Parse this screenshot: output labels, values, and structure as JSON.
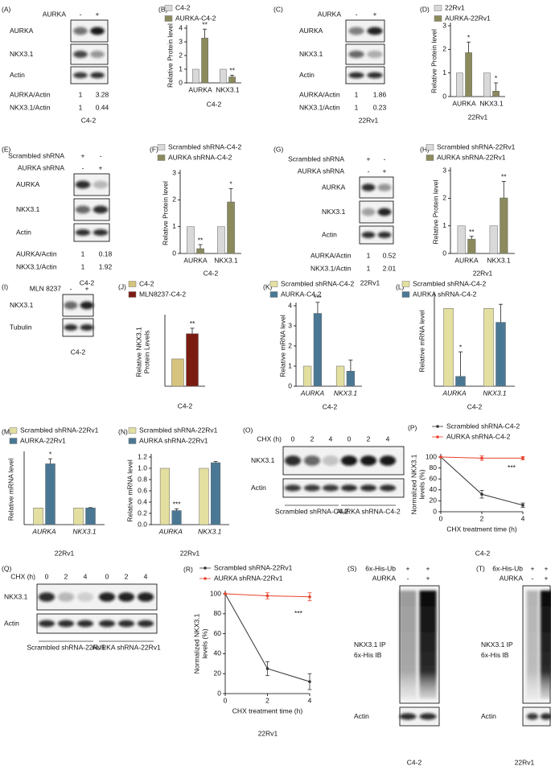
{
  "chart_data": [
    {
      "type": "bar",
      "panel": "(B)",
      "categories": [
        "AURKA",
        "NKX3.1"
      ],
      "series": [
        {
          "name": "C4-2",
          "color": "#d9d9d9",
          "values": [
            1,
            1
          ]
        },
        {
          "name": "AURKA-C4-2",
          "color": "#8a8a5c",
          "values": [
            3.28,
            0.44
          ],
          "errors": [
            0.65,
            0.12
          ],
          "significance": [
            "**",
            "**"
          ]
        }
      ],
      "ylabel": [
        "Relative Protein level"
      ],
      "ylim": [
        0,
        4
      ],
      "yticks": [
        0,
        1,
        2,
        3,
        4
      ],
      "caption": "C4-2",
      "caption_color": "#a03aa8"
    },
    {
      "type": "bar",
      "panel": "(D)",
      "categories": [
        "AURKA",
        "NKX3.1"
      ],
      "series": [
        {
          "name": "22Rv1",
          "color": "#d9d9d9",
          "values": [
            1,
            1
          ]
        },
        {
          "name": "AURKA-22Rv1",
          "color": "#8a8a5c",
          "values": [
            1.86,
            0.23
          ],
          "errors": [
            0.45,
            0.35
          ],
          "significance": [
            "*",
            "*"
          ]
        }
      ],
      "ylabel": [
        "Relative Protein level"
      ],
      "ylim": [
        0,
        3
      ],
      "yticks": [
        0,
        1,
        2,
        3
      ],
      "caption": "22Rv1",
      "caption_color": "#2e9e4a"
    },
    {
      "type": "bar",
      "panel": "(F)",
      "categories": [
        "AURKA",
        "NKX3.1"
      ],
      "series": [
        {
          "name": "Scrambled shRNA-C4-2",
          "color": "#d9d9d9",
          "values": [
            1,
            1
          ]
        },
        {
          "name": "AURKA shRNA-C4-2",
          "color": "#8a8a5c",
          "values": [
            0.18,
            1.92
          ],
          "errors": [
            0.15,
            0.5
          ],
          "significance": [
            "**",
            "*"
          ]
        }
      ],
      "ylabel": [
        "Relative Protein level"
      ],
      "ylim": [
        0,
        3
      ],
      "yticks": [
        0,
        1,
        2,
        3
      ],
      "caption": "C4-2",
      "caption_color": "#a03aa8"
    },
    {
      "type": "bar",
      "panel": "(H)",
      "categories": [
        "AURKA",
        "NKX3.1"
      ],
      "series": [
        {
          "name": "Scrambled shRNA-22Rv1",
          "color": "#d9d9d9",
          "values": [
            1,
            1
          ]
        },
        {
          "name": "AURKA shRNA-22Rv1",
          "color": "#8a8a5c",
          "values": [
            0.52,
            2.01
          ],
          "errors": [
            0.1,
            0.6
          ],
          "significance": [
            "**",
            "**"
          ]
        }
      ],
      "ylabel": [
        "Relative Protein level"
      ],
      "ylim": [
        0,
        3
      ],
      "yticks": [
        0,
        1,
        2,
        3
      ],
      "caption": "22Rv1",
      "caption_color": "#2e9e4a"
    },
    {
      "type": "bar",
      "panel": "(J)",
      "categories": [
        null
      ],
      "series": [
        {
          "name": "C4-2",
          "color": "#d6c47e",
          "values": [
            1
          ]
        },
        {
          "name": "MLN8237-C4-2",
          "color": "#7b1c12",
          "values": [
            1.92
          ],
          "errors": [
            0.2
          ],
          "significance": [
            "**"
          ]
        }
      ],
      "ylabel": [
        "Relative NKX3.1",
        "Protein Levels"
      ],
      "ylim": [
        0,
        2.5
      ],
      "caption": "C4-2",
      "caption_color": "#a03aa8"
    },
    {
      "type": "bar",
      "panel": "(K)",
      "categories": [
        "AURKA",
        "NKX3.1"
      ],
      "category_style": "italic",
      "series": [
        {
          "name": "Scrambled shRNA-C4-2",
          "color": "#e3dfa0",
          "values": [
            1,
            1
          ]
        },
        {
          "name": "AURKA-C4-2",
          "color": "#4a7894",
          "values": [
            3.62,
            0.75
          ],
          "errors": [
            0.55,
            0.55
          ],
          "significance": [
            "***",
            null
          ]
        }
      ],
      "ylabel": [
        "Relative mRNA level"
      ],
      "ylim": [
        0,
        4
      ],
      "yticks": [
        0,
        1,
        2,
        3,
        4
      ],
      "caption": "C4-2",
      "caption_color": "#a03aa8"
    },
    {
      "type": "bar",
      "panel": "(L)",
      "categories": [
        "AURKA",
        "NKX3.1"
      ],
      "category_style": "italic",
      "series": [
        {
          "name": "Scrambled shRNA-C4-2",
          "color": "#e3dfa0",
          "values": [
            0.95,
            0.95
          ]
        },
        {
          "name": "AURKA shRNA-C4-2",
          "color": "#4a7894",
          "values": [
            0.12,
            0.78
          ],
          "errors": [
            0.3,
            0.22
          ],
          "significance": [
            "*",
            null
          ]
        }
      ],
      "ylabel": [
        "Relative mRNA level"
      ],
      "ylim": [
        0,
        1.1
      ],
      "caption": "C4-2",
      "caption_color": "#a03aa8"
    },
    {
      "type": "bar",
      "panel": "(M)",
      "categories": [
        "AURKA",
        "NKX3.1"
      ],
      "category_style": "italic",
      "series": [
        {
          "name": "Scrambled shRNA-22Rv1",
          "color": "#e3dfa0",
          "values": [
            1,
            1
          ]
        },
        {
          "name": "AURKA-22Rv1",
          "color": "#4a7894",
          "values": [
            3.65,
            1
          ],
          "errors": [
            0.3,
            0.02
          ],
          "significance": [
            "*",
            null
          ]
        }
      ],
      "ylabel": [
        "Relative mRNA level"
      ],
      "ylim": [
        0,
        4.2
      ],
      "caption": "22Rv1",
      "caption_color": "#2e9e4a"
    },
    {
      "type": "bar",
      "panel": "(N)",
      "categories": [
        "AURKA",
        "NKX3.1"
      ],
      "category_style": "italic",
      "series": [
        {
          "name": "Scrambled shRNA-22Rv1",
          "color": "#e3dfa0",
          "values": [
            1,
            1
          ]
        },
        {
          "name": "AURKA shRNA-22Rv1",
          "color": "#4a7894",
          "values": [
            0.25,
            1.1
          ],
          "errors": [
            0.03,
            0.02
          ],
          "significance": [
            "***",
            null
          ]
        }
      ],
      "ylabel": [
        "Relative mRNA level"
      ],
      "ylim": [
        0,
        1.2
      ],
      "yticks": [
        {
          "value": 0,
          "label": "0.0"
        },
        {
          "value": 0.2,
          "label": "0.2"
        },
        {
          "value": 0.4,
          "label": "0.4"
        },
        {
          "value": 0.6,
          "label": "0.6"
        },
        {
          "value": 0.8,
          "label": "0.8"
        },
        {
          "value": 1,
          "label": "1.0"
        },
        {
          "value": 1.2,
          "label": "1.2"
        }
      ],
      "caption": "22Rv1",
      "caption_color": "#2e9e4a"
    },
    {
      "type": "line",
      "panel": "(P)",
      "x": [
        0,
        2,
        4
      ],
      "series": [
        {
          "name": "Scrambled shRNA-C4-2",
          "color": "#333333",
          "values": [
            100,
            32,
            12
          ],
          "errors": [
            0,
            7,
            4
          ]
        },
        {
          "name": "AURKA shRNA-C4-2",
          "color": "#e8422c",
          "values": [
            100,
            98,
            98
          ],
          "errors": [
            0,
            4,
            3
          ]
        }
      ],
      "annotation": "***",
      "xlabel": "CHX treatment time (h)",
      "ylabel": [
        "Normalized NKX3.1",
        "levels (%)"
      ],
      "xlim": [
        0,
        4
      ],
      "xticks": [
        0,
        2,
        4
      ],
      "ylim": [
        0,
        100
      ],
      "yticks": [
        0,
        20,
        40,
        60,
        80,
        100
      ],
      "caption": "C4-2",
      "caption_color": "#a03aa8"
    },
    {
      "type": "line",
      "panel": "(R)",
      "x": [
        0,
        2,
        4
      ],
      "series": [
        {
          "name": "Scrambled shRNA-22Rv1",
          "color": "#333333",
          "values": [
            100,
            25,
            12
          ],
          "errors": [
            0,
            7,
            8
          ]
        },
        {
          "name": "AURKA shRNA-22Rv1",
          "color": "#e8422c",
          "values": [
            100,
            98,
            97
          ],
          "errors": [
            0,
            3,
            4
          ]
        }
      ],
      "annotation": "***",
      "xlabel": "CHX treatment time (h)",
      "ylabel": [
        "Normalized NKX3.1",
        "levels (%)"
      ],
      "xlim": [
        0,
        4
      ],
      "xticks": [
        0,
        2,
        4
      ],
      "ylim": [
        0,
        100
      ],
      "yticks": [
        0,
        20,
        40,
        60,
        80,
        100
      ],
      "caption": "22Rv1",
      "caption_color": "#2e9e4a"
    }
  ],
  "blots": [
    {
      "panel": "(A)",
      "conditions": [
        {
          "name": "AURKA",
          "marks": [
            "-",
            "+"
          ]
        }
      ],
      "rows": [
        "AURKA",
        "NKX3.1",
        "Actin"
      ],
      "quant": [
        {
          "name": "AURKA/Actin",
          "values": [
            1,
            3.28
          ]
        },
        {
          "name": "NKX3.1/Actin",
          "values": [
            1,
            0.44
          ]
        }
      ],
      "caption": "C4-2",
      "caption_color": "#a03aa8"
    },
    {
      "panel": "(C)",
      "conditions": [
        {
          "name": "AURKA",
          "marks": [
            "-",
            "+"
          ]
        }
      ],
      "rows": [
        "AURKA",
        "NKX3.1",
        "Actin"
      ],
      "quant": [
        {
          "name": "AURKA/Actin",
          "values": [
            1,
            1.86
          ]
        },
        {
          "name": "NKX3.1/Actin",
          "values": [
            1,
            0.23
          ]
        }
      ],
      "caption": "22Rv1",
      "caption_color": "#2e9e4a"
    },
    {
      "panel": "(E)",
      "conditions": [
        {
          "name": "Scrambled shRNA",
          "marks": [
            "+",
            "-"
          ]
        },
        {
          "name": "AURKA shRNA",
          "marks": [
            "-",
            "+"
          ]
        }
      ],
      "rows": [
        "AURKA",
        "NKX3.1",
        "Actin"
      ],
      "quant": [
        {
          "name": "AURKA/Actin",
          "values": [
            1,
            0.18
          ]
        },
        {
          "name": "NKX3.1/Actin",
          "values": [
            1,
            1.92
          ]
        }
      ],
      "caption": "C4-2",
      "caption_color": "#a03aa8"
    },
    {
      "panel": "(G)",
      "conditions": [
        {
          "name": "Scrambled shRNA",
          "marks": [
            "+",
            "-"
          ]
        },
        {
          "name": "AURKA shRNA",
          "marks": [
            "-",
            "+"
          ]
        }
      ],
      "rows": [
        "AURKA",
        "NKX3.1",
        "Actin"
      ],
      "quant": [
        {
          "name": "AURKA/Actin",
          "values": [
            1,
            0.52
          ]
        },
        {
          "name": "NKX3.1/Actin",
          "values": [
            1,
            2.01
          ]
        }
      ],
      "caption": "22Rv1",
      "caption_color": "#2e9e4a"
    },
    {
      "panel": "(I)",
      "conditions": [
        {
          "name": "MLN 8237",
          "marks": [
            "-",
            "+"
          ]
        }
      ],
      "rows": [
        "NKX3.1",
        "Tubulin"
      ],
      "caption": "C4-2",
      "caption_color": "#a03aa8"
    },
    {
      "panel": "(O)",
      "conditions": [
        {
          "name": "CHX (h)",
          "marks": [
            0,
            2,
            4,
            0,
            2,
            4
          ]
        }
      ],
      "rows": [
        "NKX3.1",
        "Actin"
      ],
      "groups": [
        "Scrambled shRNA-C4-2",
        "AURKA shRNA-C4-2"
      ],
      "group_color": "#a03aa8"
    },
    {
      "panel": "(Q)",
      "conditions": [
        {
          "name": "CHX (h)",
          "marks": [
            0,
            2,
            4,
            0,
            2,
            4
          ]
        }
      ],
      "rows": [
        "NKX3.1",
        "Actin"
      ],
      "groups": [
        "Scrambled shRNA-22Rv1",
        "AURKA shRNA-22Rv1"
      ],
      "group_color": "#2e9e4a"
    },
    {
      "panel": "(S)",
      "conditions": [
        {
          "name": "6x-His-Ub",
          "marks": [
            "+",
            "+"
          ]
        },
        {
          "name": "AURKA",
          "marks": [
            "-",
            "+"
          ]
        }
      ],
      "rows": [
        [
          "NKX3.1 IP",
          "6x-His IB"
        ],
        "Actin"
      ],
      "caption": "C4-2",
      "caption_color": "#a03aa8"
    },
    {
      "panel": "(T)",
      "conditions": [
        {
          "name": "6x-His-Ub",
          "marks": [
            "+",
            "+"
          ]
        },
        {
          "name": "AURKA",
          "marks": [
            "-",
            "+"
          ]
        }
      ],
      "rows": [
        [
          "NKX3.1 IP",
          "6x-His IB"
        ],
        "Actin"
      ],
      "caption": "22Rv1",
      "caption_color": "#2e9e4a"
    }
  ]
}
